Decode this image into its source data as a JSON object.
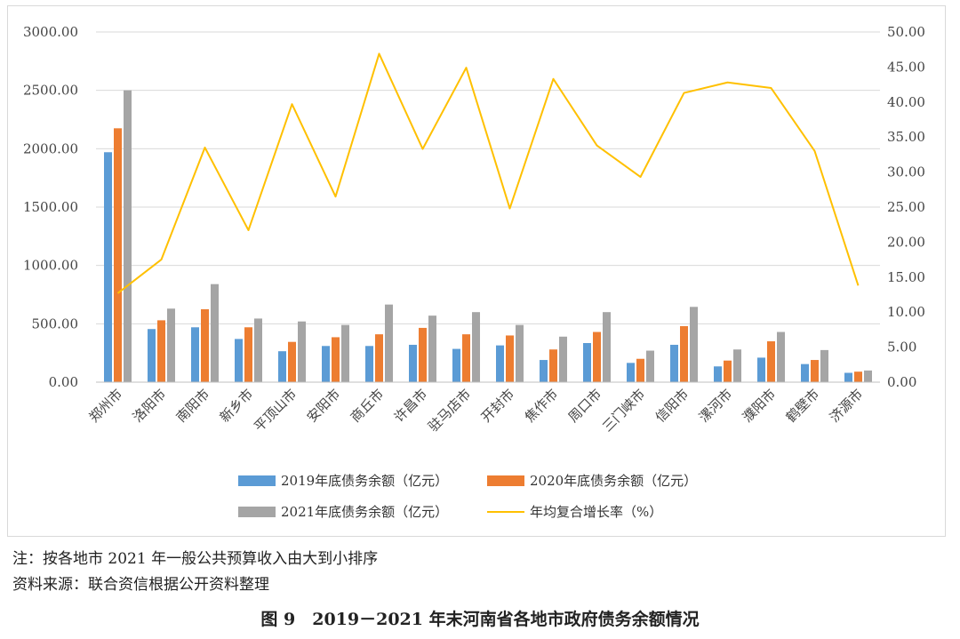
{
  "notes": {
    "note_line": "注：按各地市 2021 年一般公共预算收入由大到小排序",
    "source_line": "资料来源：联合资信根据公开资料整理"
  },
  "caption": "图 9　2019－2021 年末河南省各地市政府债务余额情况",
  "chart_data": {
    "type": "bar",
    "categories": [
      "郑州市",
      "洛阳市",
      "南阳市",
      "新乡市",
      "平顶山市",
      "安阳市",
      "商丘市",
      "许昌市",
      "驻马店市",
      "开封市",
      "焦作市",
      "周口市",
      "三门峡市",
      "信阳市",
      "漯河市",
      "濮阳市",
      "鹤壁市",
      "济源市"
    ],
    "series": [
      {
        "name": "2019年底债务余额（亿元）",
        "type": "bar",
        "axis": "left",
        "color": "#5b9bd5",
        "values": [
          1970,
          455,
          470,
          370,
          265,
          310,
          310,
          320,
          285,
          315,
          190,
          335,
          165,
          320,
          135,
          210,
          155,
          80
        ]
      },
      {
        "name": "2020年底债务余额（亿元）",
        "type": "bar",
        "axis": "left",
        "color": "#ed7d31",
        "values": [
          2175,
          530,
          625,
          470,
          345,
          385,
          410,
          465,
          410,
          400,
          280,
          430,
          200,
          480,
          185,
          350,
          190,
          90
        ]
      },
      {
        "name": "2021年底债务余额（亿元）",
        "type": "bar",
        "axis": "left",
        "color": "#a5a5a5",
        "values": [
          2500,
          630,
          840,
          545,
          520,
          490,
          665,
          570,
          600,
          490,
          390,
          600,
          270,
          645,
          280,
          430,
          275,
          100
        ]
      },
      {
        "name": "年均复合增长率（%）",
        "type": "line",
        "axis": "right",
        "color": "#ffc000",
        "values": [
          12.7,
          17.5,
          33.5,
          21.7,
          39.7,
          26.5,
          46.9,
          33.3,
          44.9,
          24.8,
          43.3,
          33.8,
          29.3,
          41.3,
          42.8,
          42.0,
          33.0,
          13.8
        ]
      }
    ],
    "y_left": {
      "min": 0,
      "max": 3000,
      "step": 500,
      "tick_labels": [
        "0.00",
        "500.00",
        "1000.00",
        "1500.00",
        "2000.00",
        "2500.00",
        "3000.00"
      ]
    },
    "y_right": {
      "min": 0,
      "max": 50,
      "step": 5,
      "tick_labels": [
        "0.00",
        "5.00",
        "10.00",
        "15.00",
        "20.00",
        "25.00",
        "30.00",
        "35.00",
        "40.00",
        "45.00",
        "50.00"
      ]
    },
    "grid": true,
    "legend_position": "bottom"
  }
}
